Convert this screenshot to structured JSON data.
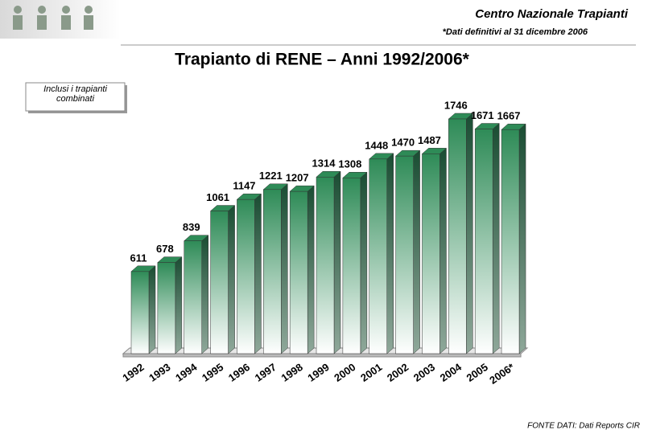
{
  "header": {
    "org": "Centro Nazionale Trapianti",
    "subtitle": "*Dati definitivi al 31 dicembre 2006"
  },
  "note": "Inclusi i trapianti combinati",
  "source": "FONTE DATI: Dati Reports CIR",
  "chart_data": {
    "type": "bar3d",
    "title": "Trapianto di RENE – Anni 1992/2006*",
    "categories": [
      "1992",
      "1993",
      "1994",
      "1995",
      "1996",
      "1997",
      "1998",
      "1999",
      "2000",
      "2001",
      "2002",
      "2003",
      "2004",
      "2005",
      "2006*"
    ],
    "values": [
      611,
      678,
      839,
      1061,
      1147,
      1221,
      1207,
      1314,
      1308,
      1448,
      1470,
      1487,
      1746,
      1671,
      1667
    ],
    "color": "#2e8b57"
  }
}
